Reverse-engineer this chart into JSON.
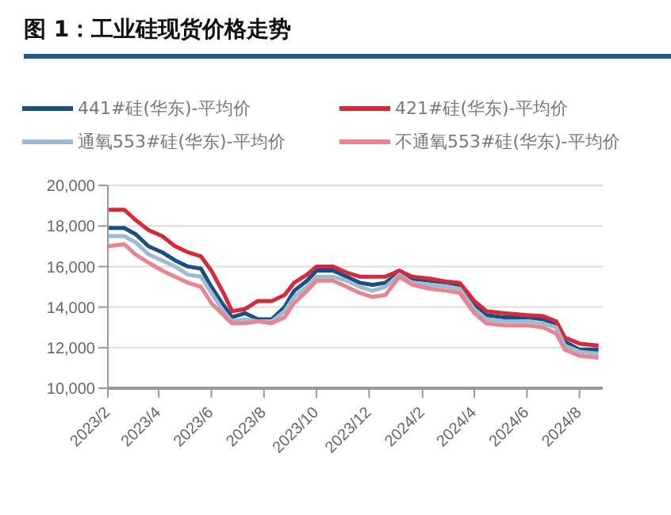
{
  "chart_data": {
    "type": "line",
    "title": "图 1：工业硅现货价格走势",
    "x": [
      "2023-02-01",
      "2023-02-20",
      "2023-03-05",
      "2023-03-20",
      "2023-04-05",
      "2023-04-20",
      "2023-05-05",
      "2023-05-20",
      "2023-06-01",
      "2023-06-15",
      "2023-06-25",
      "2023-07-10",
      "2023-07-25",
      "2023-08-10",
      "2023-08-25",
      "2023-09-05",
      "2023-09-20",
      "2023-10-01",
      "2023-10-20",
      "2023-11-05",
      "2023-11-20",
      "2023-12-05",
      "2023-12-20",
      "2024-01-05",
      "2024-01-20",
      "2024-02-10",
      "2024-03-01",
      "2024-03-15",
      "2024-04-01",
      "2024-04-15",
      "2024-05-05",
      "2024-06-01",
      "2024-06-20",
      "2024-07-05",
      "2024-07-15",
      "2024-08-01",
      "2024-08-23"
    ],
    "series": [
      {
        "name": "441#硅(华东)-平均价",
        "color": "#1a4f80",
        "values": [
          17900,
          17900,
          17600,
          17000,
          16700,
          16300,
          16000,
          15900,
          15000,
          14100,
          13500,
          13700,
          13400,
          13400,
          14000,
          14800,
          15300,
          15800,
          15800,
          15500,
          15200,
          15100,
          15200,
          15700,
          15400,
          15300,
          15200,
          15100,
          14100,
          13600,
          13500,
          13500,
          13400,
          13100,
          12300,
          11900,
          11900
        ]
      },
      {
        "name": "421#硅(华东)-平均价",
        "color": "#d42a3a",
        "values": [
          18800,
          18800,
          18300,
          17800,
          17500,
          17000,
          16700,
          16500,
          15800,
          14700,
          13800,
          13900,
          14300,
          14300,
          14600,
          15200,
          15600,
          16000,
          16000,
          15700,
          15500,
          15500,
          15500,
          15800,
          15500,
          15400,
          15250,
          15200,
          14300,
          13800,
          13700,
          13600,
          13550,
          13300,
          12500,
          12200,
          12100
        ]
      },
      {
        "name": "通氧553#硅(华东)-平均价",
        "color": "#9dbcd4",
        "values": [
          17500,
          17500,
          17200,
          16600,
          16300,
          16000,
          15600,
          15500,
          14700,
          13800,
          13300,
          13400,
          13300,
          13300,
          13800,
          14500,
          15000,
          15500,
          15500,
          15300,
          15000,
          14800,
          15000,
          15600,
          15200,
          15100,
          15000,
          14900,
          13900,
          13400,
          13300,
          13300,
          13200,
          13000,
          12100,
          11800,
          11700
        ]
      },
      {
        "name": "不通氧553#硅(华东)-平均价",
        "color": "#e8838f",
        "values": [
          17000,
          17100,
          16600,
          16200,
          15800,
          15500,
          15200,
          15000,
          14200,
          13600,
          13200,
          13200,
          13300,
          13200,
          13500,
          14200,
          14800,
          15300,
          15300,
          15000,
          14700,
          14500,
          14600,
          15500,
          15100,
          14900,
          14800,
          14700,
          13700,
          13200,
          13100,
          13100,
          13000,
          12700,
          11900,
          11600,
          11500
        ]
      }
    ],
    "xlim": [
      "2023-02-01",
      "2024-08-28"
    ],
    "xticks": [
      {
        "value": "2023-02-01",
        "label": "2023/2"
      },
      {
        "value": "2023-04-01",
        "label": "2023/4"
      },
      {
        "value": "2023-06-01",
        "label": "2023/6"
      },
      {
        "value": "2023-08-01",
        "label": "2023/8"
      },
      {
        "value": "2023-10-01",
        "label": "2023/10"
      },
      {
        "value": "2023-12-01",
        "label": "2023/12"
      },
      {
        "value": "2024-02-01",
        "label": "2024/2"
      },
      {
        "value": "2024-04-01",
        "label": "2024/4"
      },
      {
        "value": "2024-06-01",
        "label": "2024/6"
      },
      {
        "value": "2024-08-01",
        "label": "2024/8"
      }
    ],
    "ylim": [
      10000,
      20000
    ],
    "yticks": [
      {
        "value": 10000,
        "label": "10,000"
      },
      {
        "value": 12000,
        "label": "12,000"
      },
      {
        "value": 14000,
        "label": "14,000"
      },
      {
        "value": 16000,
        "label": "16,000"
      },
      {
        "value": 18000,
        "label": "18,000"
      },
      {
        "value": 20000,
        "label": "20,000"
      }
    ],
    "grid": "y",
    "legend": "top",
    "marker": "none",
    "line_style": "solid"
  }
}
